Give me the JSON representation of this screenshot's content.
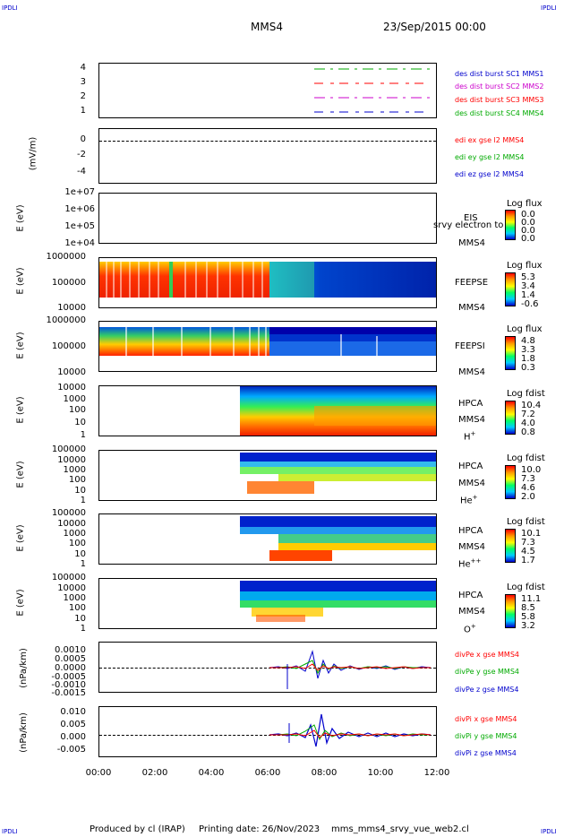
{
  "corners": {
    "tl": "IPDLI",
    "tr": "IPDLI",
    "bl": "IPDLI",
    "br": "IPDLI"
  },
  "header": {
    "spacecraft": "MMS4",
    "date": "23/Sep/2015 00:00"
  },
  "footer": {
    "produced": "Produced by cl (IRAP)",
    "printed": "Printing date: 26/Nov/2023",
    "file": "mms_mms4_srvy_vue_web2.cl"
  },
  "x_ticks": [
    "00:00",
    "02:00",
    "04:00",
    "06:00",
    "08:00",
    "10:00",
    "12:00"
  ],
  "panels": {
    "p1": {
      "yticks": [
        "4",
        "3",
        "2",
        "1"
      ],
      "labels": [
        {
          "text": "des dist burst SC1 MMS1",
          "color": "#0000cc"
        },
        {
          "text": "des dist burst SC2 MMS2",
          "color": "#cc00cc"
        },
        {
          "text": "des dist burst SC3 MMS3",
          "color": "#ff0000"
        },
        {
          "text": "des dist burst SC4 MMS4",
          "color": "#00aa00"
        }
      ]
    },
    "p2": {
      "ylabel": "(mV/m)",
      "yticks": [
        "0",
        "-2",
        "-4"
      ],
      "labels": [
        {
          "text": "edi ex gse l2 MMS4",
          "color": "#ff0000"
        },
        {
          "text": "edi ey gse l2 MMS4",
          "color": "#00aa00"
        },
        {
          "text": "edi ez gse l2 MMS4",
          "color": "#0000cc"
        }
      ]
    },
    "p3": {
      "ylabel": "E (eV)",
      "yticks": [
        "1e+07",
        "1e+06",
        "1e+05",
        "1e+04"
      ],
      "inst": "EIS",
      "inst2": "MMS4",
      "overlay": "srvy electron to",
      "cbtitle": "Log flux",
      "cbvals": [
        "0.0",
        "0.0",
        "0.0",
        "0.0"
      ]
    },
    "p4": {
      "ylabel": "E (eV)",
      "yticks": [
        "1000000",
        "100000",
        "10000"
      ],
      "inst": "FEEPSE",
      "inst2": "MMS4",
      "cbtitle": "Log flux",
      "cbvals": [
        "5.3",
        "3.4",
        "1.4",
        "-0.6"
      ]
    },
    "p5": {
      "ylabel": "E (eV)",
      "yticks": [
        "1000000",
        "100000",
        "10000"
      ],
      "inst": "FEEPSI",
      "inst2": "MMS4",
      "cbtitle": "Log flux",
      "cbvals": [
        "4.8",
        "3.3",
        "1.8",
        "0.3"
      ]
    },
    "p6": {
      "ylabel": "E (eV)",
      "yticks": [
        "10000",
        "1000",
        "100",
        "10",
        "1"
      ],
      "inst": "HPCA",
      "inst2": "MMS4",
      "species": "H",
      "sup": "+",
      "cbtitle": "Log fdist",
      "cbvals": [
        "10.4",
        "7.2",
        "4.0",
        "0.8"
      ]
    },
    "p7": {
      "ylabel": "E (eV)",
      "yticks": [
        "100000",
        "10000",
        "1000",
        "100",
        "10",
        "1"
      ],
      "inst": "HPCA",
      "inst2": "MMS4",
      "species": "He",
      "sup": "+",
      "cbtitle": "Log fdist",
      "cbvals": [
        "10.0",
        "7.3",
        "4.6",
        "2.0"
      ]
    },
    "p8": {
      "ylabel": "E (eV)",
      "yticks": [
        "100000",
        "10000",
        "1000",
        "100",
        "10",
        "1"
      ],
      "inst": "HPCA",
      "inst2": "MMS4",
      "species": "He",
      "sup": "++",
      "cbtitle": "Log fdist",
      "cbvals": [
        "10.1",
        "7.3",
        "4.5",
        "1.7"
      ]
    },
    "p9": {
      "ylabel": "E (eV)",
      "yticks": [
        "100000",
        "10000",
        "1000",
        "100",
        "10",
        "1"
      ],
      "inst": "HPCA",
      "inst2": "MMS4",
      "species": "O",
      "sup": "+",
      "cbtitle": "Log fdist",
      "cbvals": [
        "11.1",
        "8.5",
        "5.8",
        "3.2"
      ]
    },
    "p10": {
      "ylabel": "(nPa/km)",
      "yticks": [
        "0.0010",
        "0.0005",
        "0.0000",
        "-0.0005",
        "-0.0010",
        "-0.0015"
      ],
      "labels": [
        {
          "text": "divPe x gse MMS4",
          "color": "#ff0000"
        },
        {
          "text": "divPe y gse MMS4",
          "color": "#00aa00"
        },
        {
          "text": "divPe z gse MMS4",
          "color": "#0000cc"
        }
      ]
    },
    "p11": {
      "ylabel": "(nPa/km)",
      "yticks": [
        "0.010",
        "0.005",
        "0.000",
        "-0.005"
      ],
      "labels": [
        {
          "text": "divPi x gse MMS4",
          "color": "#ff0000"
        },
        {
          "text": "divPi y gse MMS4",
          "color": "#00aa00"
        },
        {
          "text": "divPi z gse MMS4",
          "color": "#0000cc"
        }
      ]
    }
  },
  "chart_data": {
    "type": "heatmap",
    "x_range": [
      "00:00",
      "12:00"
    ],
    "colors": {
      "red": "#ff0000",
      "green": "#00aa00",
      "blue": "#0000cc",
      "magenta": "#cc00cc"
    }
  }
}
